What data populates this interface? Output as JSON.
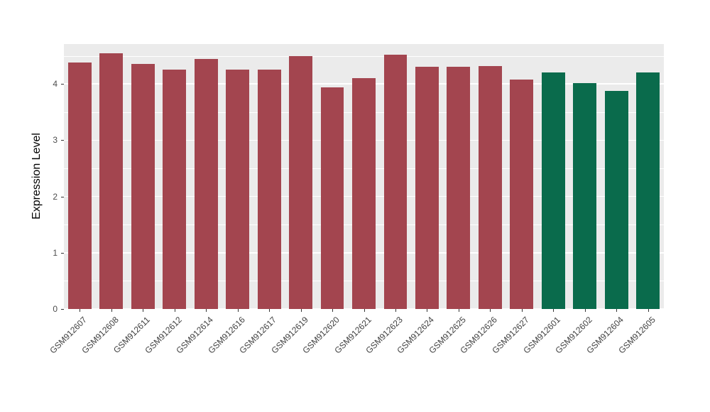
{
  "chart_data": {
    "type": "bar",
    "title": "",
    "xlabel": "",
    "ylabel": "Expression Level",
    "categories": [
      "GSM912607",
      "GSM912608",
      "GSM912611",
      "GSM912612",
      "GSM912614",
      "GSM912616",
      "GSM912617",
      "GSM912619",
      "GSM912620",
      "GSM912621",
      "GSM912623",
      "GSM912624",
      "GSM912625",
      "GSM912626",
      "GSM912627",
      "GSM912601",
      "GSM912602",
      "GSM912604",
      "GSM912605"
    ],
    "values": [
      4.38,
      4.54,
      4.36,
      4.26,
      4.44,
      4.26,
      4.26,
      4.49,
      3.94,
      4.1,
      4.52,
      4.3,
      4.3,
      4.32,
      4.08,
      4.21,
      4.01,
      3.88,
      4.21
    ],
    "groups": [
      0,
      0,
      0,
      0,
      0,
      0,
      0,
      0,
      0,
      0,
      0,
      0,
      0,
      0,
      0,
      1,
      1,
      1,
      1
    ],
    "group_colors": [
      "#A3454F",
      "#0A6B4C"
    ],
    "ylim": [
      0,
      4.71
    ],
    "yticks": [
      0,
      1,
      2,
      3,
      4
    ],
    "minor_ticks": [
      0.5,
      1.5,
      2.5,
      3.5,
      4.5
    ],
    "grid": "on",
    "legend": "none",
    "panel_bg": "#EBEBEB",
    "grid_color": "#FFFFFF",
    "bar_width_fraction": 0.74
  }
}
